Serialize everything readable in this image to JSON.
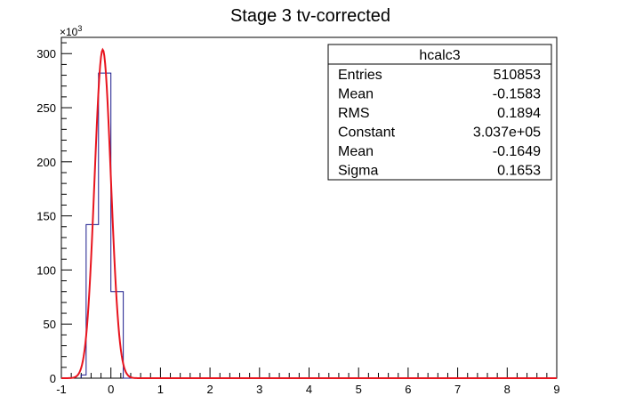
{
  "chart_data": {
    "type": "histogram",
    "title": "Stage 3 tv-corrected",
    "xlim": [
      -1,
      9
    ],
    "ylim": [
      0,
      315
    ],
    "y_multiplier": "×10",
    "y_multiplier_exp": "3",
    "x_ticks": [
      -1,
      0,
      1,
      2,
      3,
      4,
      5,
      6,
      7,
      8,
      9
    ],
    "y_ticks": [
      0,
      50,
      100,
      150,
      200,
      250,
      300
    ],
    "histogram": {
      "bins": [
        {
          "x0": -0.6,
          "x1": -0.5,
          "y": 3
        },
        {
          "x0": -0.5,
          "x1": -0.25,
          "y": 142
        },
        {
          "x0": -0.25,
          "x1": 0.0,
          "y": 282
        },
        {
          "x0": 0.0,
          "x1": 0.25,
          "y": 80
        },
        {
          "x0": 0.25,
          "x1": 9.0,
          "y": 0
        }
      ],
      "line_color": "#1a1a8c"
    },
    "fit": {
      "type": "gaussian",
      "constant": 303.7,
      "mean": -0.1649,
      "sigma": 0.1653,
      "line_color": "#e8141e"
    },
    "stats_box": {
      "name": "hcalc3",
      "rows": [
        {
          "label": "Entries",
          "value": "510853"
        },
        {
          "label": "Mean",
          "value": "-0.1583"
        },
        {
          "label": "RMS",
          "value": "0.1894"
        },
        {
          "label": "Constant",
          "value": "3.037e+05"
        },
        {
          "label": "Mean",
          "value": "-0.1649"
        },
        {
          "label": "Sigma",
          "value": "0.1653"
        }
      ]
    }
  }
}
